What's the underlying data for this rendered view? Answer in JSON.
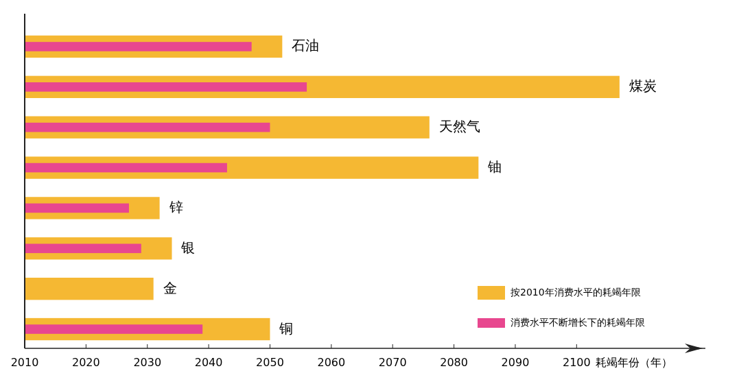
{
  "chart_data": {
    "type": "bar",
    "orientation": "horizontal",
    "categories": [
      "石油",
      "煤炭",
      "天然气",
      "铀",
      "锌",
      "银",
      "金",
      "铜"
    ],
    "series": [
      {
        "name": "按2010年消费水平的耗竭年限",
        "color": "#f5b833",
        "values": [
          2052,
          2107,
          2076,
          2084,
          2032,
          2034,
          2031,
          2050
        ]
      },
      {
        "name": "消费水平不断增长下的耗竭年限",
        "color": "#e8478f",
        "values": [
          2047,
          2056,
          2050,
          2043,
          2027,
          2029,
          null,
          2039
        ]
      }
    ],
    "xlabel": "耗竭年份（年）",
    "xlim": [
      2010,
      2121
    ],
    "xticks": [
      2010,
      2020,
      2030,
      2040,
      2050,
      2060,
      2070,
      2080,
      2090,
      2100
    ],
    "legend": "bottom right"
  }
}
